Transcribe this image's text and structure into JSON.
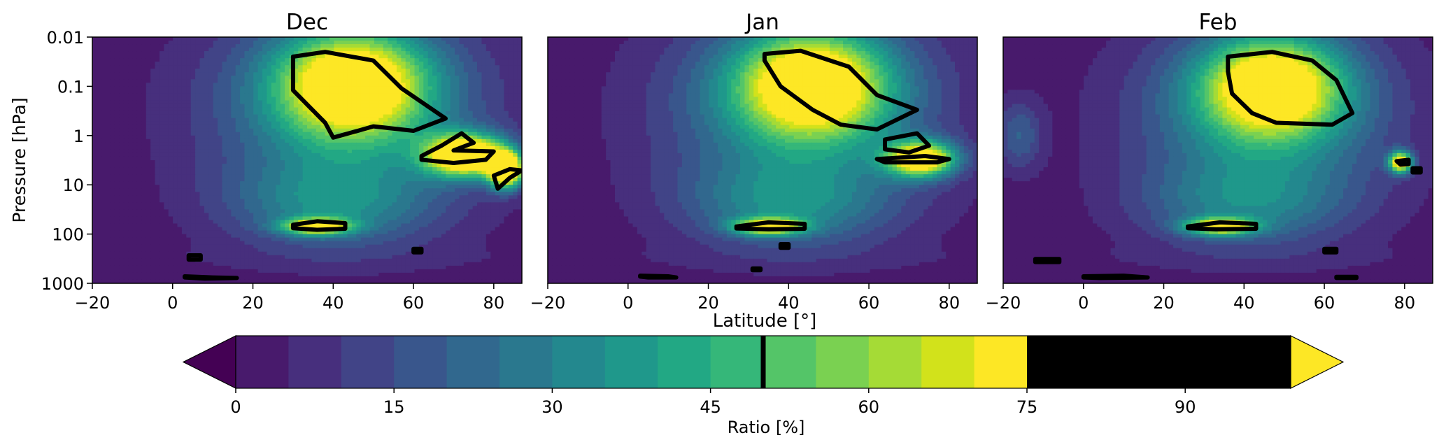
{
  "chart_data": [
    {
      "type": "heatmap",
      "title": "Dec",
      "xlabel": "",
      "ylabel": "Pressure [hPa]",
      "xlim": [
        -20,
        87
      ],
      "ylim": [
        1000,
        0.01
      ],
      "yscale": "log",
      "xticks": [
        "−20",
        "0",
        "20",
        "40",
        "60",
        "80"
      ],
      "yticks": [
        "0.01",
        "0.1",
        "1",
        "10",
        "100",
        "1000"
      ],
      "blobs": [
        {
          "lat": 45,
          "p": 0.09,
          "peak": 72,
          "slat": 13,
          "sdec": 0.75
        },
        {
          "lat": 43,
          "p": 0.3,
          "peak": 30,
          "slat": 24,
          "sdec": 1.4
        },
        {
          "lat": 73,
          "p": 2.5,
          "peak": 93,
          "slat": 7,
          "sdec": 0.3
        },
        {
          "lat": 83,
          "p": 5,
          "peak": 96,
          "slat": 3,
          "sdec": 0.25
        },
        {
          "lat": 36,
          "p": 70,
          "peak": 65,
          "slat": 6,
          "sdec": 0.12
        },
        {
          "lat": 40,
          "p": 25,
          "peak": 25,
          "slat": 18,
          "sdec": 0.6
        }
      ],
      "contour_50": [
        [
          [
            30,
            0.025
          ],
          [
            38,
            0.02
          ],
          [
            50,
            0.03
          ],
          [
            57,
            0.11
          ],
          [
            68,
            0.45
          ],
          [
            60,
            0.8
          ],
          [
            50,
            0.65
          ],
          [
            45,
            0.85
          ],
          [
            40,
            1.1
          ],
          [
            38,
            0.55
          ],
          [
            30,
            0.12
          ]
        ],
        [
          [
            62,
            2.6
          ],
          [
            67,
            1.6
          ],
          [
            72,
            0.9
          ],
          [
            75,
            1.4
          ],
          [
            70,
            2.0
          ],
          [
            80,
            2.1
          ],
          [
            78,
            3.1
          ],
          [
            70,
            3.6
          ],
          [
            62,
            3.1
          ]
        ],
        [
          [
            80,
            6.5
          ],
          [
            84,
            4.8
          ],
          [
            87,
            5.1
          ],
          [
            84,
            7.2
          ],
          [
            81,
            12
          ]
        ],
        [
          [
            30,
            65
          ],
          [
            36,
            55
          ],
          [
            43,
            60
          ],
          [
            43,
            78
          ],
          [
            36,
            82
          ],
          [
            30,
            76
          ]
        ],
        [
          [
            3,
            720
          ],
          [
            10,
            760
          ],
          [
            16,
            780
          ],
          [
            8,
            800
          ],
          [
            3,
            760
          ]
        ],
        [
          [
            4,
            270
          ],
          [
            7,
            270
          ],
          [
            7,
            330
          ],
          [
            4,
            330
          ]
        ],
        [
          [
            60,
            200
          ],
          [
            62,
            200
          ],
          [
            62,
            235
          ],
          [
            60,
            235
          ]
        ]
      ]
    },
    {
      "type": "heatmap",
      "title": "Jan",
      "xlabel": "Latitude [°]",
      "ylabel": "",
      "xlim": [
        -20,
        87
      ],
      "ylim": [
        1000,
        0.01
      ],
      "yscale": "log",
      "xticks": [
        "−20",
        "0",
        "20",
        "40",
        "60",
        "80"
      ],
      "yticks": [],
      "blobs": [
        {
          "lat": 46,
          "p": 0.09,
          "peak": 72,
          "slat": 13,
          "sdec": 0.75
        },
        {
          "lat": 43,
          "p": 0.3,
          "peak": 30,
          "slat": 24,
          "sdec": 1.4
        },
        {
          "lat": 73,
          "p": 3.0,
          "peak": 82,
          "slat": 6,
          "sdec": 0.25
        },
        {
          "lat": 35,
          "p": 70,
          "peak": 66,
          "slat": 6,
          "sdec": 0.12
        },
        {
          "lat": 40,
          "p": 25,
          "peak": 25,
          "slat": 18,
          "sdec": 0.6
        }
      ],
      "contour_50": [
        [
          [
            34,
            0.022
          ],
          [
            43,
            0.019
          ],
          [
            55,
            0.04
          ],
          [
            62,
            0.15
          ],
          [
            72,
            0.3
          ],
          [
            62,
            0.75
          ],
          [
            53,
            0.6
          ],
          [
            46,
            0.3
          ],
          [
            38,
            0.1
          ],
          [
            34,
            0.03
          ]
        ],
        [
          [
            64,
            1.2
          ],
          [
            72,
            0.9
          ],
          [
            75,
            1.6
          ],
          [
            70,
            2.2
          ],
          [
            64,
            1.9
          ]
        ],
        [
          [
            62,
            3.0
          ],
          [
            74,
            2.6
          ],
          [
            80,
            3.0
          ],
          [
            77,
            3.5
          ],
          [
            64,
            3.5
          ]
        ],
        [
          [
            27,
            70
          ],
          [
            35,
            58
          ],
          [
            44,
            62
          ],
          [
            44,
            78
          ],
          [
            35,
            80
          ],
          [
            27,
            77
          ]
        ],
        [
          [
            3,
            700
          ],
          [
            10,
            720
          ],
          [
            12,
            760
          ],
          [
            5,
            760
          ],
          [
            3,
            730
          ]
        ],
        [
          [
            31,
            500
          ],
          [
            33,
            500
          ],
          [
            33,
            540
          ],
          [
            31,
            540
          ]
        ],
        [
          [
            38,
            160
          ],
          [
            40,
            160
          ],
          [
            40,
            190
          ],
          [
            38,
            190
          ]
        ]
      ]
    },
    {
      "type": "heatmap",
      "title": "Feb",
      "xlabel": "",
      "ylabel": "",
      "xlim": [
        -20,
        87
      ],
      "ylim": [
        1000,
        0.01
      ],
      "yscale": "log",
      "xticks": [
        "−20",
        "0",
        "20",
        "40",
        "60",
        "80"
      ],
      "yticks": [],
      "blobs": [
        {
          "lat": 47,
          "p": 0.1,
          "peak": 70,
          "slat": 12,
          "sdec": 0.7
        },
        {
          "lat": 45,
          "p": 0.4,
          "peak": 32,
          "slat": 22,
          "sdec": 1.3
        },
        {
          "lat": 79,
          "p": 3.5,
          "peak": 80,
          "slat": 2,
          "sdec": 0.15
        },
        {
          "lat": 34,
          "p": 70,
          "peak": 66,
          "slat": 6,
          "sdec": 0.12
        },
        {
          "lat": 40,
          "p": 25,
          "peak": 22,
          "slat": 18,
          "sdec": 0.6
        },
        {
          "lat": -16,
          "p": 1,
          "peak": 18,
          "slat": 4,
          "sdec": 0.5
        }
      ],
      "contour_50": [
        [
          [
            36,
            0.025
          ],
          [
            47,
            0.02
          ],
          [
            57,
            0.03
          ],
          [
            63,
            0.075
          ],
          [
            67,
            0.35
          ],
          [
            62,
            0.6
          ],
          [
            48,
            0.55
          ],
          [
            42,
            0.35
          ],
          [
            37,
            0.14
          ],
          [
            36,
            0.05
          ]
        ],
        [
          [
            78,
            3.3
          ],
          [
            81,
            3.1
          ],
          [
            81,
            3.8
          ],
          [
            79,
            3.9
          ]
        ],
        [
          [
            82,
            4.6
          ],
          [
            84,
            4.6
          ],
          [
            84,
            5.6
          ],
          [
            82,
            5.6
          ]
        ],
        [
          [
            26,
            70
          ],
          [
            34,
            58
          ],
          [
            43,
            62
          ],
          [
            43,
            78
          ],
          [
            33,
            80
          ],
          [
            26,
            76
          ]
        ],
        [
          [
            -12,
            320
          ],
          [
            -6,
            320
          ],
          [
            -6,
            370
          ],
          [
            -12,
            370
          ]
        ],
        [
          [
            0,
            720
          ],
          [
            10,
            700
          ],
          [
            16,
            760
          ],
          [
            4,
            780
          ],
          [
            0,
            760
          ]
        ],
        [
          [
            60,
            200
          ],
          [
            63,
            200
          ],
          [
            63,
            235
          ],
          [
            60,
            235
          ]
        ],
        [
          [
            63,
            740
          ],
          [
            68,
            740
          ],
          [
            68,
            780
          ],
          [
            63,
            780
          ]
        ]
      ]
    }
  ],
  "colorbar": {
    "label": "Ratio [%]",
    "min": 0,
    "max": 100,
    "step": 5,
    "ticks": [
      "0",
      "15",
      "30",
      "45",
      "60",
      "75",
      "90"
    ],
    "tick_values": [
      0,
      15,
      30,
      45,
      60,
      75,
      90
    ],
    "contour_line_value": 50,
    "extend": "both"
  },
  "colors": {
    "levels": [
      "#440154",
      "#481a6c",
      "#472f7d",
      "#414487",
      "#39568c",
      "#31688e",
      "#2a788e",
      "#23888e",
      "#1f988b",
      "#22a884",
      "#35b779",
      "#54c568",
      "#7ad151",
      "#a5db36",
      "#d2e21b",
      "#fde725"
    ],
    "contour": "#000000",
    "under": "#440154",
    "over": "#fde725"
  }
}
